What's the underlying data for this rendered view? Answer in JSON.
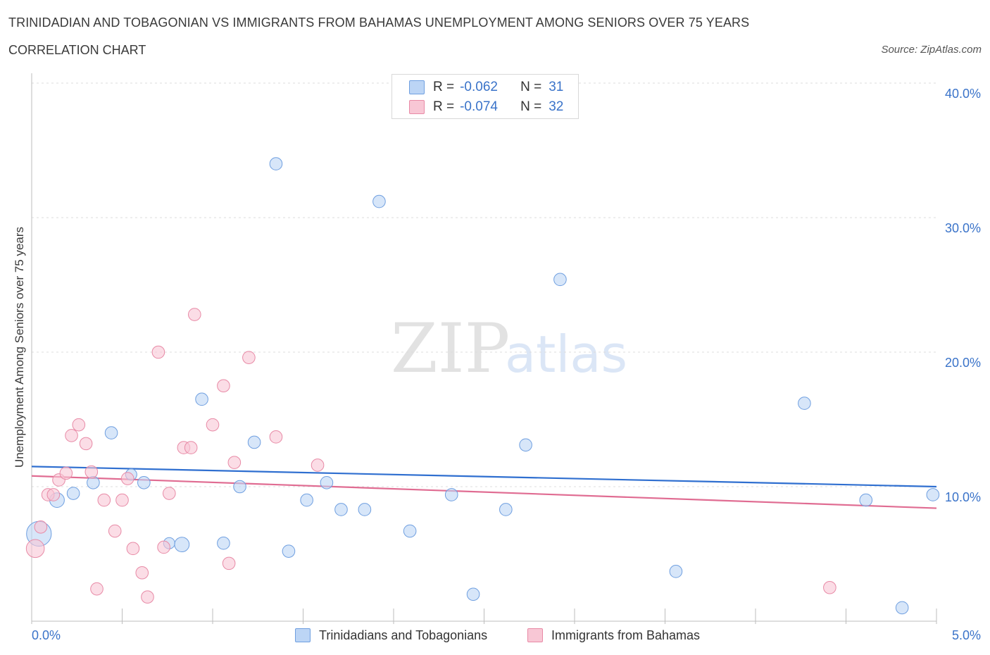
{
  "header": {
    "title": "TRINIDADIAN AND TOBAGONIAN VS IMMIGRANTS FROM BAHAMAS UNEMPLOYMENT AMONG SENIORS OVER 75 YEARS",
    "subtitle": "CORRELATION CHART",
    "source": "Source: ZipAtlas.com"
  },
  "watermark": {
    "zip": "ZIP",
    "atlas": "atlas"
  },
  "stats": [
    {
      "r_label": "R =",
      "r_value": "-0.062",
      "n_label": "N =",
      "n_value": "31",
      "color": "#a9c8f0",
      "border": "#6f9fe0"
    },
    {
      "r_label": "R =",
      "r_value": "-0.074",
      "n_label": "N =",
      "n_value": "32",
      "color": "#f7bfcf",
      "border": "#e88aa6"
    }
  ],
  "chart_data": {
    "type": "scatter",
    "title": "TRINIDADIAN AND TOBAGONIAN VS IMMIGRANTS FROM BAHAMAS UNEMPLOYMENT AMONG SENIORS OVER 75 YEARS",
    "xlabel": "",
    "ylabel": "Unemployment Among Seniors over 75 years",
    "xlim": [
      0,
      5.0
    ],
    "ylim": [
      0,
      40.0
    ],
    "x_tick_labels": [
      "0.0%",
      "5.0%"
    ],
    "y_ticks": [
      10,
      20,
      30,
      40
    ],
    "y_tick_labels": [
      "10.0%",
      "20.0%",
      "30.0%",
      "40.0%"
    ],
    "grid": true,
    "legend_position": "bottom-center",
    "series": [
      {
        "name": "Trinidadians and Tobagonians",
        "fill": "#bcd5f5",
        "stroke": "#6f9fe0",
        "trend_color": "#2f6fd0",
        "trend": {
          "x0": 0.0,
          "y0": 11.5,
          "x1": 5.0,
          "y1": 10.0
        },
        "points": [
          {
            "x": 0.04,
            "y": 6.5,
            "s": 2.2
          },
          {
            "x": 0.14,
            "y": 9.0,
            "s": 1.3
          },
          {
            "x": 0.23,
            "y": 9.5,
            "s": 1.1
          },
          {
            "x": 0.34,
            "y": 10.3,
            "s": 1.1
          },
          {
            "x": 0.44,
            "y": 14.0,
            "s": 1.1
          },
          {
            "x": 0.55,
            "y": 10.9,
            "s": 1.0
          },
          {
            "x": 0.62,
            "y": 10.3,
            "s": 1.1
          },
          {
            "x": 0.76,
            "y": 5.8,
            "s": 1.0
          },
          {
            "x": 0.83,
            "y": 5.7,
            "s": 1.3
          },
          {
            "x": 0.94,
            "y": 16.5,
            "s": 1.1
          },
          {
            "x": 1.06,
            "y": 5.8,
            "s": 1.1
          },
          {
            "x": 1.15,
            "y": 10.0,
            "s": 1.1
          },
          {
            "x": 1.23,
            "y": 13.3,
            "s": 1.1
          },
          {
            "x": 1.35,
            "y": 34.0,
            "s": 1.1
          },
          {
            "x": 1.42,
            "y": 5.2,
            "s": 1.1
          },
          {
            "x": 1.52,
            "y": 9.0,
            "s": 1.1
          },
          {
            "x": 1.63,
            "y": 10.3,
            "s": 1.1
          },
          {
            "x": 1.71,
            "y": 8.3,
            "s": 1.1
          },
          {
            "x": 1.84,
            "y": 8.3,
            "s": 1.1
          },
          {
            "x": 1.92,
            "y": 31.2,
            "s": 1.1
          },
          {
            "x": 2.09,
            "y": 6.7,
            "s": 1.1
          },
          {
            "x": 2.32,
            "y": 9.4,
            "s": 1.1
          },
          {
            "x": 2.44,
            "y": 2.0,
            "s": 1.1
          },
          {
            "x": 2.62,
            "y": 8.3,
            "s": 1.1
          },
          {
            "x": 2.73,
            "y": 13.1,
            "s": 1.1
          },
          {
            "x": 2.92,
            "y": 25.4,
            "s": 1.1
          },
          {
            "x": 3.56,
            "y": 3.7,
            "s": 1.1
          },
          {
            "x": 4.27,
            "y": 16.2,
            "s": 1.1
          },
          {
            "x": 4.61,
            "y": 9.0,
            "s": 1.1
          },
          {
            "x": 4.81,
            "y": 1.0,
            "s": 1.1
          },
          {
            "x": 4.98,
            "y": 9.4,
            "s": 1.1
          }
        ]
      },
      {
        "name": "Immigrants from Bahamas",
        "fill": "#f8c7d5",
        "stroke": "#e88aa6",
        "trend_color": "#e06c92",
        "trend": {
          "x0": 0.0,
          "y0": 10.8,
          "x1": 5.0,
          "y1": 8.4
        },
        "points": [
          {
            "x": 0.02,
            "y": 5.4,
            "s": 1.6
          },
          {
            "x": 0.05,
            "y": 7.0,
            "s": 1.1
          },
          {
            "x": 0.09,
            "y": 9.4,
            "s": 1.1
          },
          {
            "x": 0.12,
            "y": 9.4,
            "s": 1.1
          },
          {
            "x": 0.15,
            "y": 10.5,
            "s": 1.1
          },
          {
            "x": 0.19,
            "y": 11.0,
            "s": 1.1
          },
          {
            "x": 0.22,
            "y": 13.8,
            "s": 1.1
          },
          {
            "x": 0.26,
            "y": 14.6,
            "s": 1.1
          },
          {
            "x": 0.3,
            "y": 13.2,
            "s": 1.1
          },
          {
            "x": 0.33,
            "y": 11.1,
            "s": 1.1
          },
          {
            "x": 0.36,
            "y": 2.4,
            "s": 1.1
          },
          {
            "x": 0.4,
            "y": 9.0,
            "s": 1.1
          },
          {
            "x": 0.46,
            "y": 6.7,
            "s": 1.1
          },
          {
            "x": 0.5,
            "y": 9.0,
            "s": 1.1
          },
          {
            "x": 0.53,
            "y": 10.6,
            "s": 1.1
          },
          {
            "x": 0.56,
            "y": 5.4,
            "s": 1.1
          },
          {
            "x": 0.61,
            "y": 3.6,
            "s": 1.1
          },
          {
            "x": 0.64,
            "y": 1.8,
            "s": 1.1
          },
          {
            "x": 0.7,
            "y": 20.0,
            "s": 1.1
          },
          {
            "x": 0.73,
            "y": 5.5,
            "s": 1.1
          },
          {
            "x": 0.76,
            "y": 9.5,
            "s": 1.1
          },
          {
            "x": 0.84,
            "y": 12.9,
            "s": 1.1
          },
          {
            "x": 0.88,
            "y": 12.9,
            "s": 1.1
          },
          {
            "x": 0.9,
            "y": 22.8,
            "s": 1.1
          },
          {
            "x": 1.0,
            "y": 14.6,
            "s": 1.1
          },
          {
            "x": 1.06,
            "y": 17.5,
            "s": 1.1
          },
          {
            "x": 1.09,
            "y": 4.3,
            "s": 1.1
          },
          {
            "x": 1.12,
            "y": 11.8,
            "s": 1.1
          },
          {
            "x": 1.2,
            "y": 19.6,
            "s": 1.1
          },
          {
            "x": 1.35,
            "y": 13.7,
            "s": 1.1
          },
          {
            "x": 1.58,
            "y": 11.6,
            "s": 1.1
          },
          {
            "x": 4.41,
            "y": 2.5,
            "s": 1.1
          }
        ]
      }
    ]
  }
}
